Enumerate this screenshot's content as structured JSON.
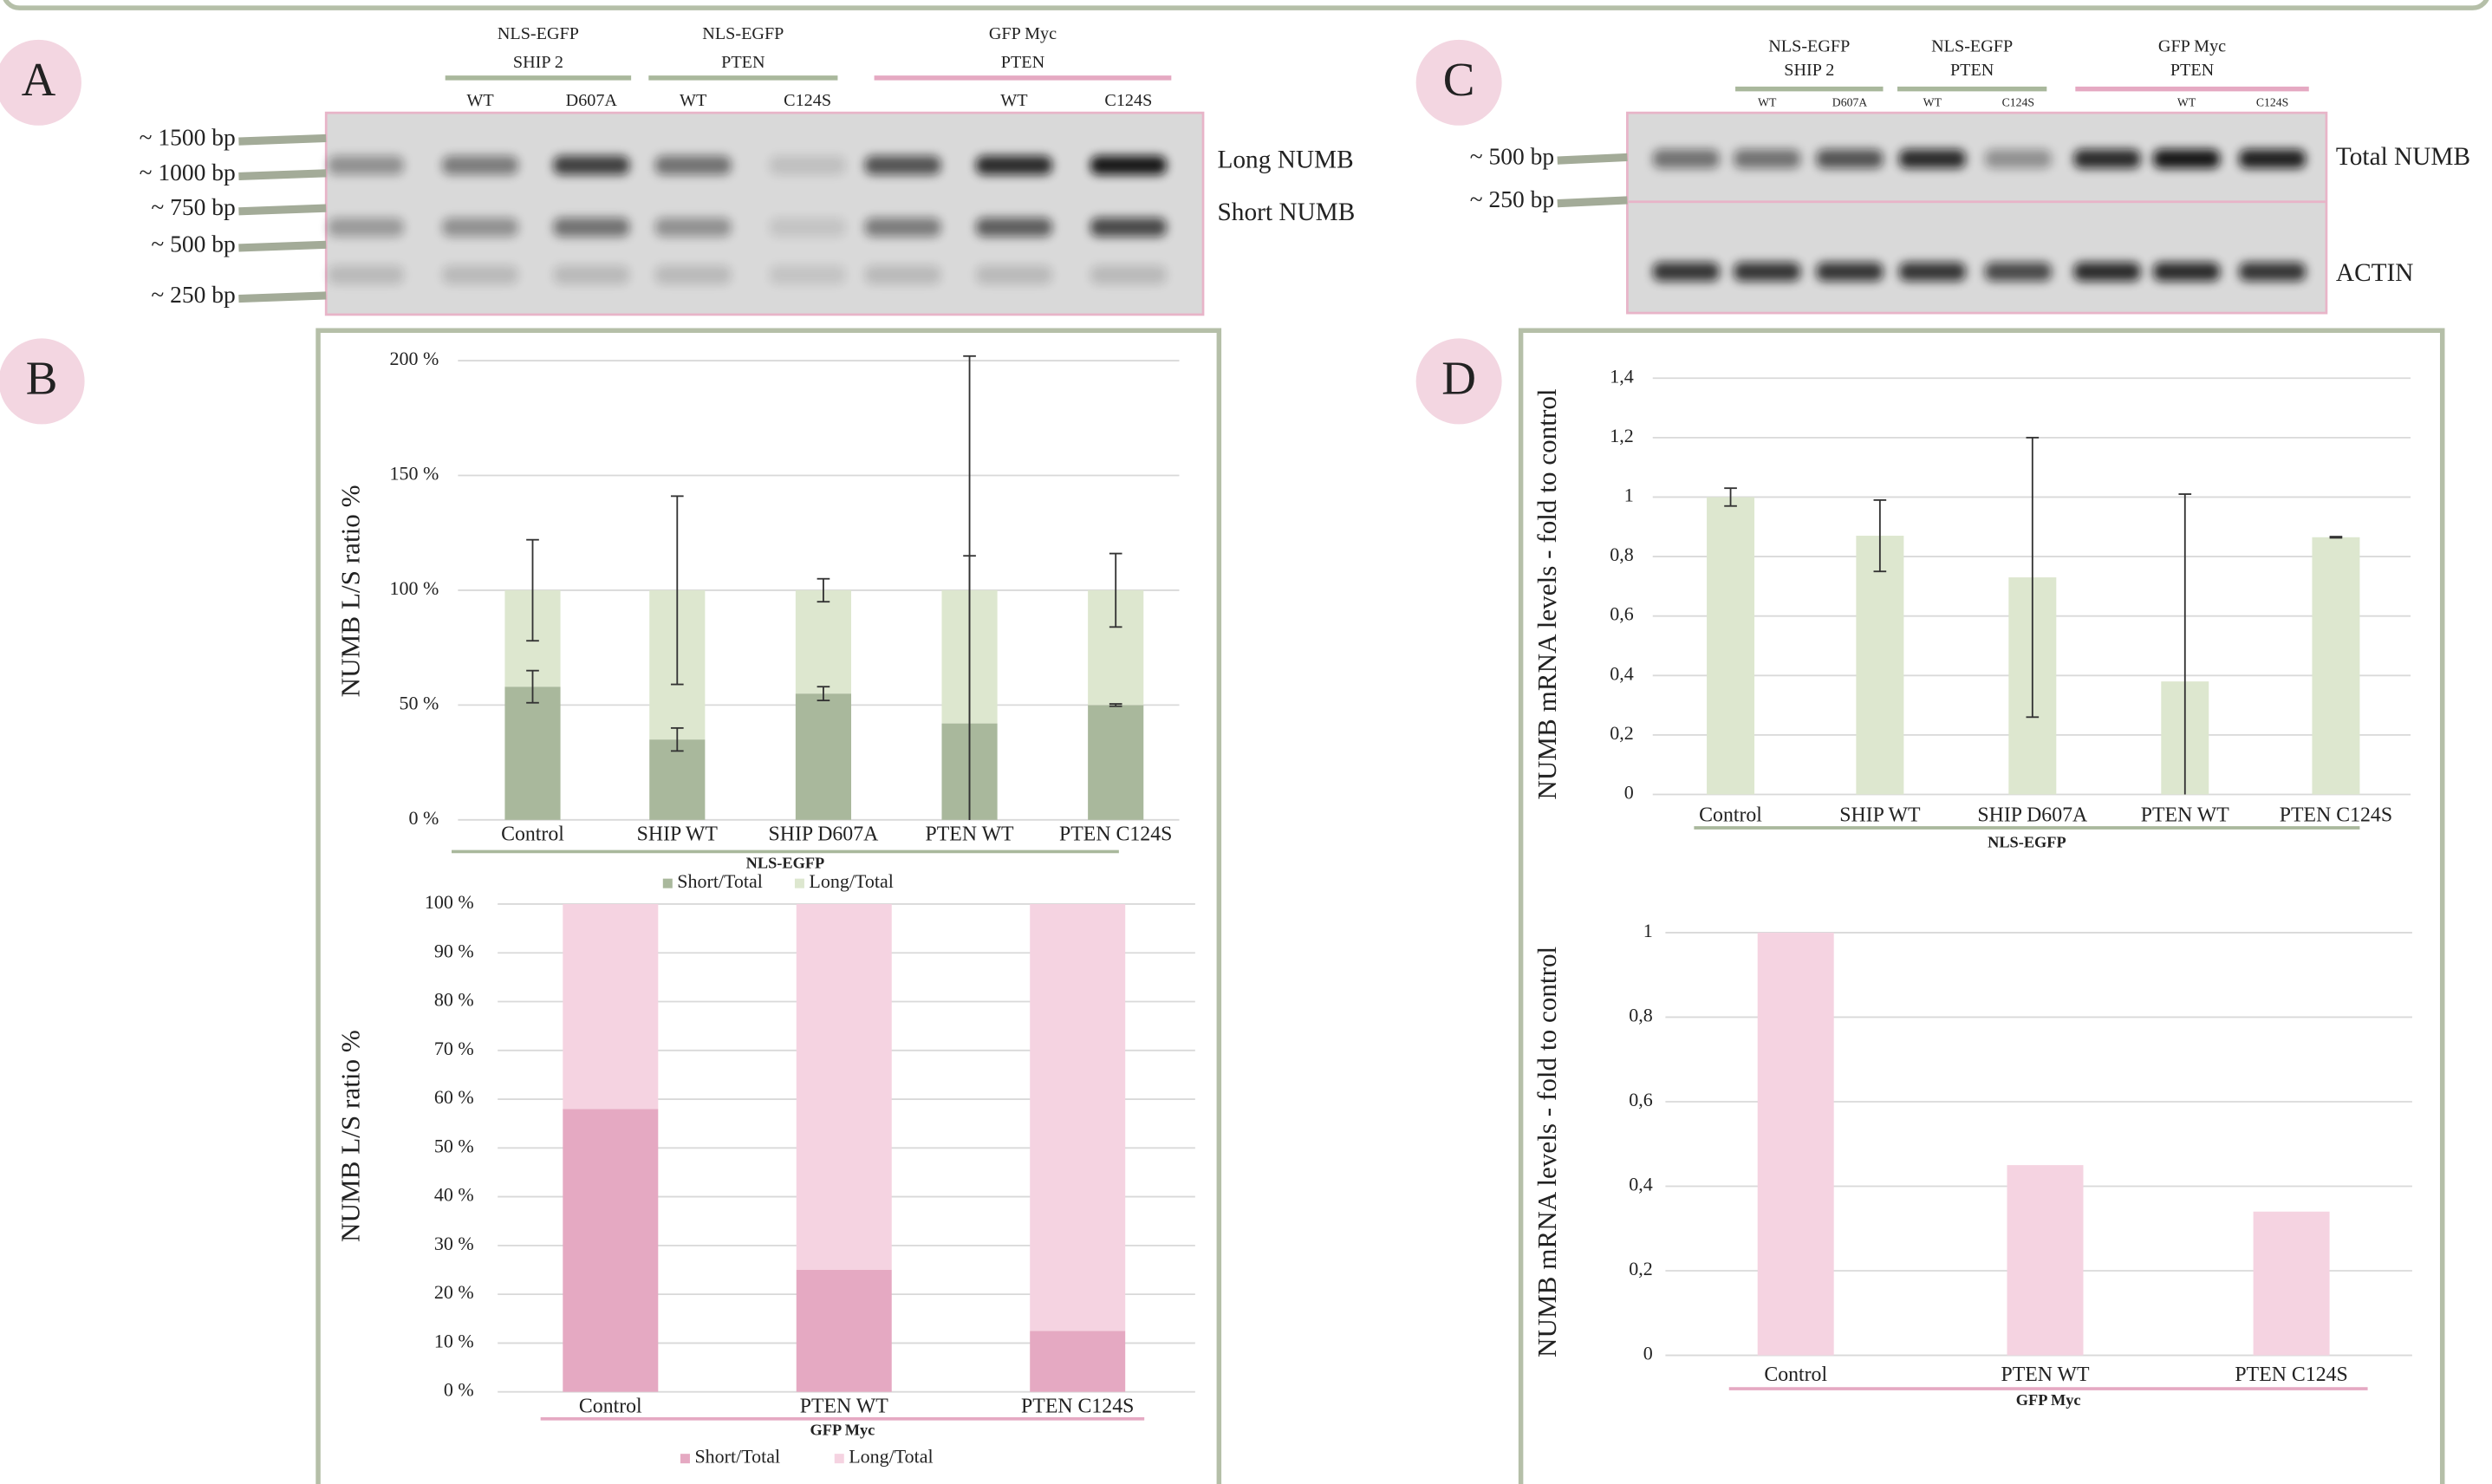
{
  "panel_labels": [
    "A",
    "B",
    "C",
    "D"
  ],
  "gel_a": {
    "groups": [
      {
        "title_lines": [
          "NLS-EGFP",
          "SHIP 2"
        ],
        "lanes": [
          "WT",
          "D607A"
        ]
      },
      {
        "title_lines": [
          "NLS-EGFP",
          "PTEN"
        ],
        "lanes": [
          "WT",
          "C124S"
        ]
      },
      {
        "title_lines": [
          "GFP Myc",
          "PTEN"
        ],
        "lanes": [
          "WT",
          "C124S"
        ]
      }
    ],
    "ladder": [
      "~ 1500 bp",
      "~ 1000 bp",
      "~ 750 bp",
      "~ 500 bp",
      "~ 250 bp"
    ],
    "bands": [
      "Long NUMB",
      "Short NUMB"
    ]
  },
  "gel_c": {
    "groups": [
      {
        "title_lines": [
          "NLS-EGFP",
          "SHIP 2"
        ],
        "lanes": [
          "WT",
          "D607A"
        ]
      },
      {
        "title_lines": [
          "NLS-EGFP",
          "PTEN"
        ],
        "lanes": [
          "WT",
          "C124S"
        ]
      },
      {
        "title_lines": [
          "GFP Myc",
          "PTEN"
        ],
        "lanes": [
          "WT",
          "C124S"
        ]
      }
    ],
    "ladder": [
      "~ 500 bp",
      "~ 250 bp"
    ],
    "bands": [
      "Total NUMB",
      "ACTIN"
    ]
  },
  "chart_data": [
    {
      "type": "bar",
      "stacked": true,
      "y_label": "NUMB L/S ratio %",
      "group_label": "NLS-EGFP",
      "categories": [
        "Control",
        "SHIP WT",
        "SHIP D607A",
        "PTEN WT",
        "PTEN C124S"
      ],
      "series": [
        {
          "name": "Short/Total",
          "color": "#a9b89c",
          "values": [
            58,
            35,
            55,
            42,
            50
          ],
          "errors": [
            7,
            5,
            3,
            73,
            0.5
          ]
        },
        {
          "name": "Long/Total",
          "color": "#dde7cf",
          "values": [
            42,
            65,
            45,
            58,
            50
          ],
          "errors": [
            22,
            41,
            5,
            102,
            16
          ]
        }
      ],
      "ylim": [
        0,
        200
      ],
      "yticks": [
        {
          "value": 0,
          "label": "0 %"
        },
        {
          "value": 50,
          "label": "50 %"
        },
        {
          "value": 100,
          "label": "100 %"
        },
        {
          "value": 150,
          "label": "150 %"
        },
        {
          "value": 200,
          "label": "200 %"
        }
      ],
      "grid": true,
      "legend": "bottom"
    },
    {
      "type": "bar",
      "stacked": true,
      "y_label": "NUMB L/S ratio %",
      "group_label": "GFP Myc",
      "categories": [
        "Control",
        "PTEN WT",
        "PTEN C124S"
      ],
      "series": [
        {
          "name": "Short/Total",
          "color": "#e5a9c2",
          "values": [
            58,
            25,
            12.5
          ]
        },
        {
          "name": "Long/Total",
          "color": "#f5d3e1",
          "values": [
            42,
            75,
            87.5
          ]
        }
      ],
      "ylim": [
        0,
        100
      ],
      "yticks": [
        {
          "value": 0,
          "label": "0 %"
        },
        {
          "value": 10,
          "label": "10 %"
        },
        {
          "value": 20,
          "label": "20 %"
        },
        {
          "value": 30,
          "label": "30 %"
        },
        {
          "value": 40,
          "label": "40 %"
        },
        {
          "value": 50,
          "label": "50 %"
        },
        {
          "value": 60,
          "label": "60 %"
        },
        {
          "value": 70,
          "label": "70 %"
        },
        {
          "value": 80,
          "label": "80 %"
        },
        {
          "value": 90,
          "label": "90 %"
        },
        {
          "value": 100,
          "label": "100 %"
        }
      ],
      "grid": true,
      "legend": "bottom"
    },
    {
      "type": "bar",
      "y_label": "NUMB mRNA levels - fold to control",
      "group_label": "NLS-EGFP",
      "categories": [
        "Control",
        "SHIP WT",
        "SHIP D607A",
        "PTEN WT",
        "PTEN C124S"
      ],
      "values": [
        1,
        0.87,
        0.73,
        0.38,
        0.865
      ],
      "errors": [
        0.03,
        0.12,
        0.47,
        0.63,
        0.002
      ],
      "color": "#dde7cf",
      "ylim": [
        0,
        1.4
      ],
      "yticks": [
        0,
        {
          "value": 0.2,
          "label": "0,2"
        },
        {
          "value": 0.4,
          "label": "0,4"
        },
        {
          "value": 0.6,
          "label": "0,6"
        },
        {
          "value": 0.8,
          "label": "0,8"
        },
        1,
        {
          "value": 1.2,
          "label": "1,2"
        },
        {
          "value": 1.4,
          "label": "1,4"
        }
      ],
      "grid": true
    },
    {
      "type": "bar",
      "y_label": "NUMB mRNA levels - fold to control",
      "group_label": "GFP Myc",
      "categories": [
        "Control",
        "PTEN WT",
        "PTEN C124S"
      ],
      "values": [
        1,
        0.45,
        0.34
      ],
      "color": "#f5d3e1",
      "ylim": [
        0,
        1
      ],
      "yticks": [
        0,
        {
          "value": 0.2,
          "label": "0,2"
        },
        {
          "value": 0.4,
          "label": "0,4"
        },
        {
          "value": 0.6,
          "label": "0,6"
        },
        {
          "value": 0.8,
          "label": "0,8"
        },
        1
      ],
      "grid": true
    }
  ]
}
